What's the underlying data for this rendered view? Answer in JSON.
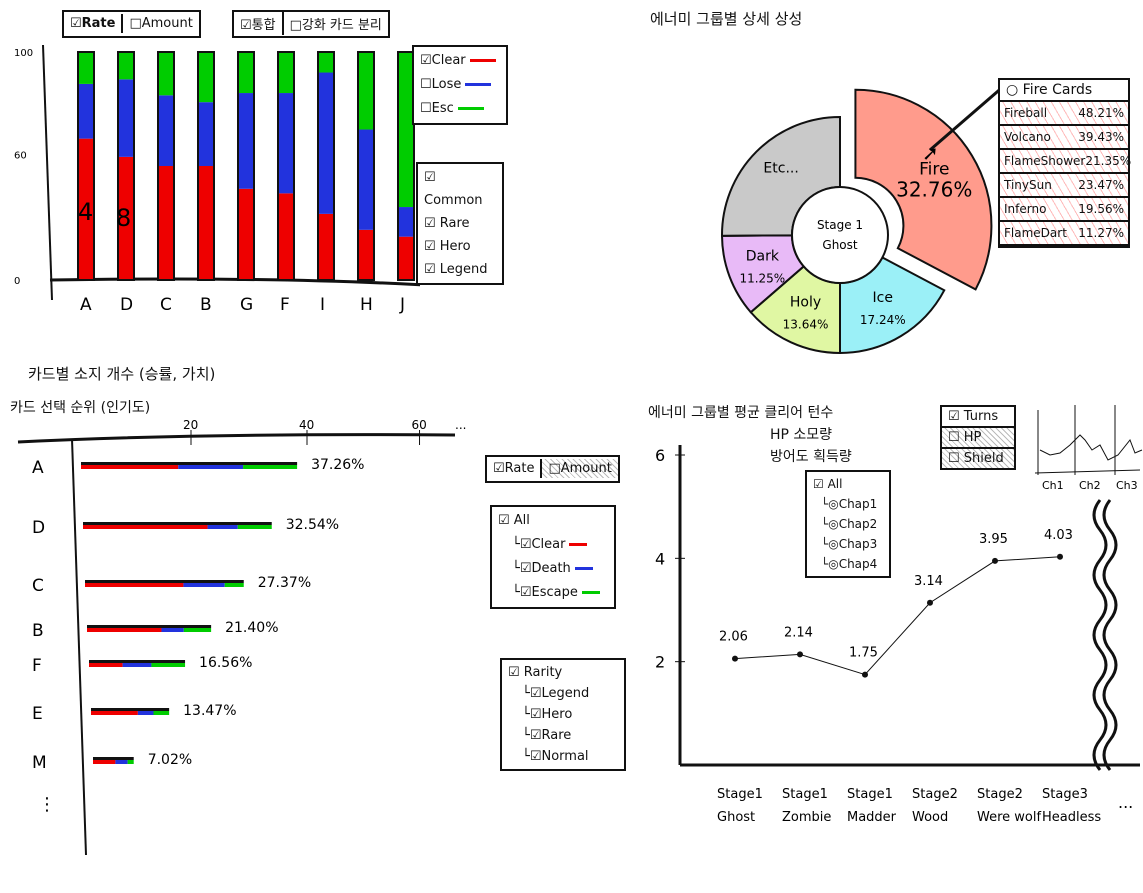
{
  "top_left": {
    "toggle1": [
      "☑Rate",
      "□Amount"
    ],
    "toggle2": [
      "☑통합",
      "□강화 카드 분리"
    ],
    "legend_result": [
      {
        "label": "Clear",
        "checked": true,
        "color": "#e00"
      },
      {
        "label": "Lose",
        "checked": false,
        "color": "#2233dd"
      },
      {
        "label": "Esc",
        "checked": false,
        "color": "#00cc00"
      }
    ],
    "legend_rarity": [
      "Common",
      "Rare",
      "Hero",
      "Legend"
    ],
    "annotations": [
      "4",
      "8"
    ]
  },
  "top_right": {
    "title": "에너미 그룹별 상세 상성",
    "center": [
      "Stage 1",
      "Ghost"
    ],
    "popup": {
      "title": "Fire Cards",
      "rows": [
        {
          "name": "Fireball",
          "value": "48.21%"
        },
        {
          "name": "Volcano",
          "value": "39.43%"
        },
        {
          "name": "FlameShower",
          "value": "21.35%"
        },
        {
          "name": "TinySun",
          "value": "23.47%"
        },
        {
          "name": "Inferno",
          "value": "19.56%"
        },
        {
          "name": "FlameDart",
          "value": "11.27%"
        }
      ]
    }
  },
  "bottom_left": {
    "title": "카드별 소지 개수 (승률, 가치)",
    "subtitle": "카드 선택 순위 (인기도)",
    "toggle": [
      "☑Rate",
      "□Amount"
    ],
    "tree1": {
      "root": "All",
      "items": [
        {
          "label": "Clear",
          "color": "#e00"
        },
        {
          "label": "Death",
          "color": "#2233dd"
        },
        {
          "label": "Escape",
          "color": "#00cc00"
        }
      ]
    },
    "tree2": {
      "root": "Rarity",
      "items": [
        "Legend",
        "Hero",
        "Rare",
        "Normal"
      ]
    },
    "more": "⋮"
  },
  "bottom_right": {
    "title": [
      "에너미 그룹별 평균 클리어 턴수",
      "HP 소모량",
      "방어도 획득량"
    ],
    "metric_toggle": [
      "Turns",
      "HP",
      "Shield"
    ],
    "chapters": {
      "root": "All",
      "items": [
        "Chap1",
        "Chap2",
        "Chap3",
        "Chap4"
      ]
    },
    "mini_labels": [
      "Ch1",
      "Ch2",
      "Ch3"
    ],
    "more": "..."
  },
  "chart_data": [
    {
      "type": "bar",
      "stacked": true,
      "categories": [
        "A",
        "D",
        "C",
        "B",
        "G",
        "F",
        "I",
        "H",
        "J"
      ],
      "more_label": "...",
      "yticks": [
        "0",
        "60",
        "100"
      ],
      "ylim": [
        0,
        100
      ],
      "series": [
        {
          "name": "Clear",
          "values": [
            62,
            54,
            50,
            50,
            40,
            38,
            29,
            22,
            19
          ]
        },
        {
          "name": "Lose",
          "values": [
            24,
            34,
            31,
            28,
            42,
            44,
            62,
            44,
            13
          ]
        },
        {
          "name": "Esc",
          "values": [
            14,
            12,
            19,
            22,
            18,
            18,
            9,
            34,
            68
          ]
        }
      ]
    },
    {
      "type": "pie",
      "donut": true,
      "labels": [
        "Fire",
        "Ice",
        "Holy",
        "Dark",
        "Etc..."
      ],
      "values": [
        32.76,
        17.24,
        13.64,
        11.25,
        25.11
      ],
      "value_labels": [
        "32.76%",
        "17.24%",
        "13.64%",
        "11.25%",
        ""
      ],
      "colors": [
        "#ff2200",
        "#22ddee",
        "#bbee33",
        "#cc66ee",
        "#888888"
      ]
    },
    {
      "type": "bar",
      "orientation": "horizontal",
      "categories": [
        "A",
        "D",
        "C",
        "B",
        "F",
        "E",
        "M"
      ],
      "values": [
        37.26,
        32.54,
        27.37,
        21.4,
        16.56,
        13.47,
        7.02
      ],
      "value_labels": [
        "37.26%",
        "32.54%",
        "27.37%",
        "21.40%",
        "16.56%",
        "13.47%",
        "7.02%"
      ],
      "xticks": [
        "20",
        "40",
        "60"
      ],
      "more_label": "...",
      "xlim": [
        0,
        70
      ],
      "split": [
        [
          0.45,
          0.3,
          0.25
        ],
        [
          0.66,
          0.16,
          0.18
        ],
        [
          0.62,
          0.26,
          0.12
        ],
        [
          0.6,
          0.18,
          0.22
        ],
        [
          0.35,
          0.3,
          0.35
        ],
        [
          0.6,
          0.2,
          0.2
        ],
        [
          0.55,
          0.3,
          0.15
        ]
      ]
    },
    {
      "type": "line",
      "categories": [
        [
          "Stage1",
          "Ghost"
        ],
        [
          "Stage1",
          "Zombie"
        ],
        [
          "Stage1",
          "Madder"
        ],
        [
          "Stage2",
          "Wood"
        ],
        [
          "Stage2",
          "Were wolf"
        ],
        [
          "Stage3",
          "Headless"
        ]
      ],
      "values": [
        2.06,
        2.14,
        1.75,
        3.14,
        3.95,
        4.03
      ],
      "value_labels": [
        "2.06",
        "2.14",
        "1.75",
        "3.14",
        "3.95",
        "4.03"
      ],
      "yticks": [
        "2",
        "4",
        "6"
      ],
      "ylim": [
        0,
        6
      ],
      "more_label": "..."
    }
  ]
}
